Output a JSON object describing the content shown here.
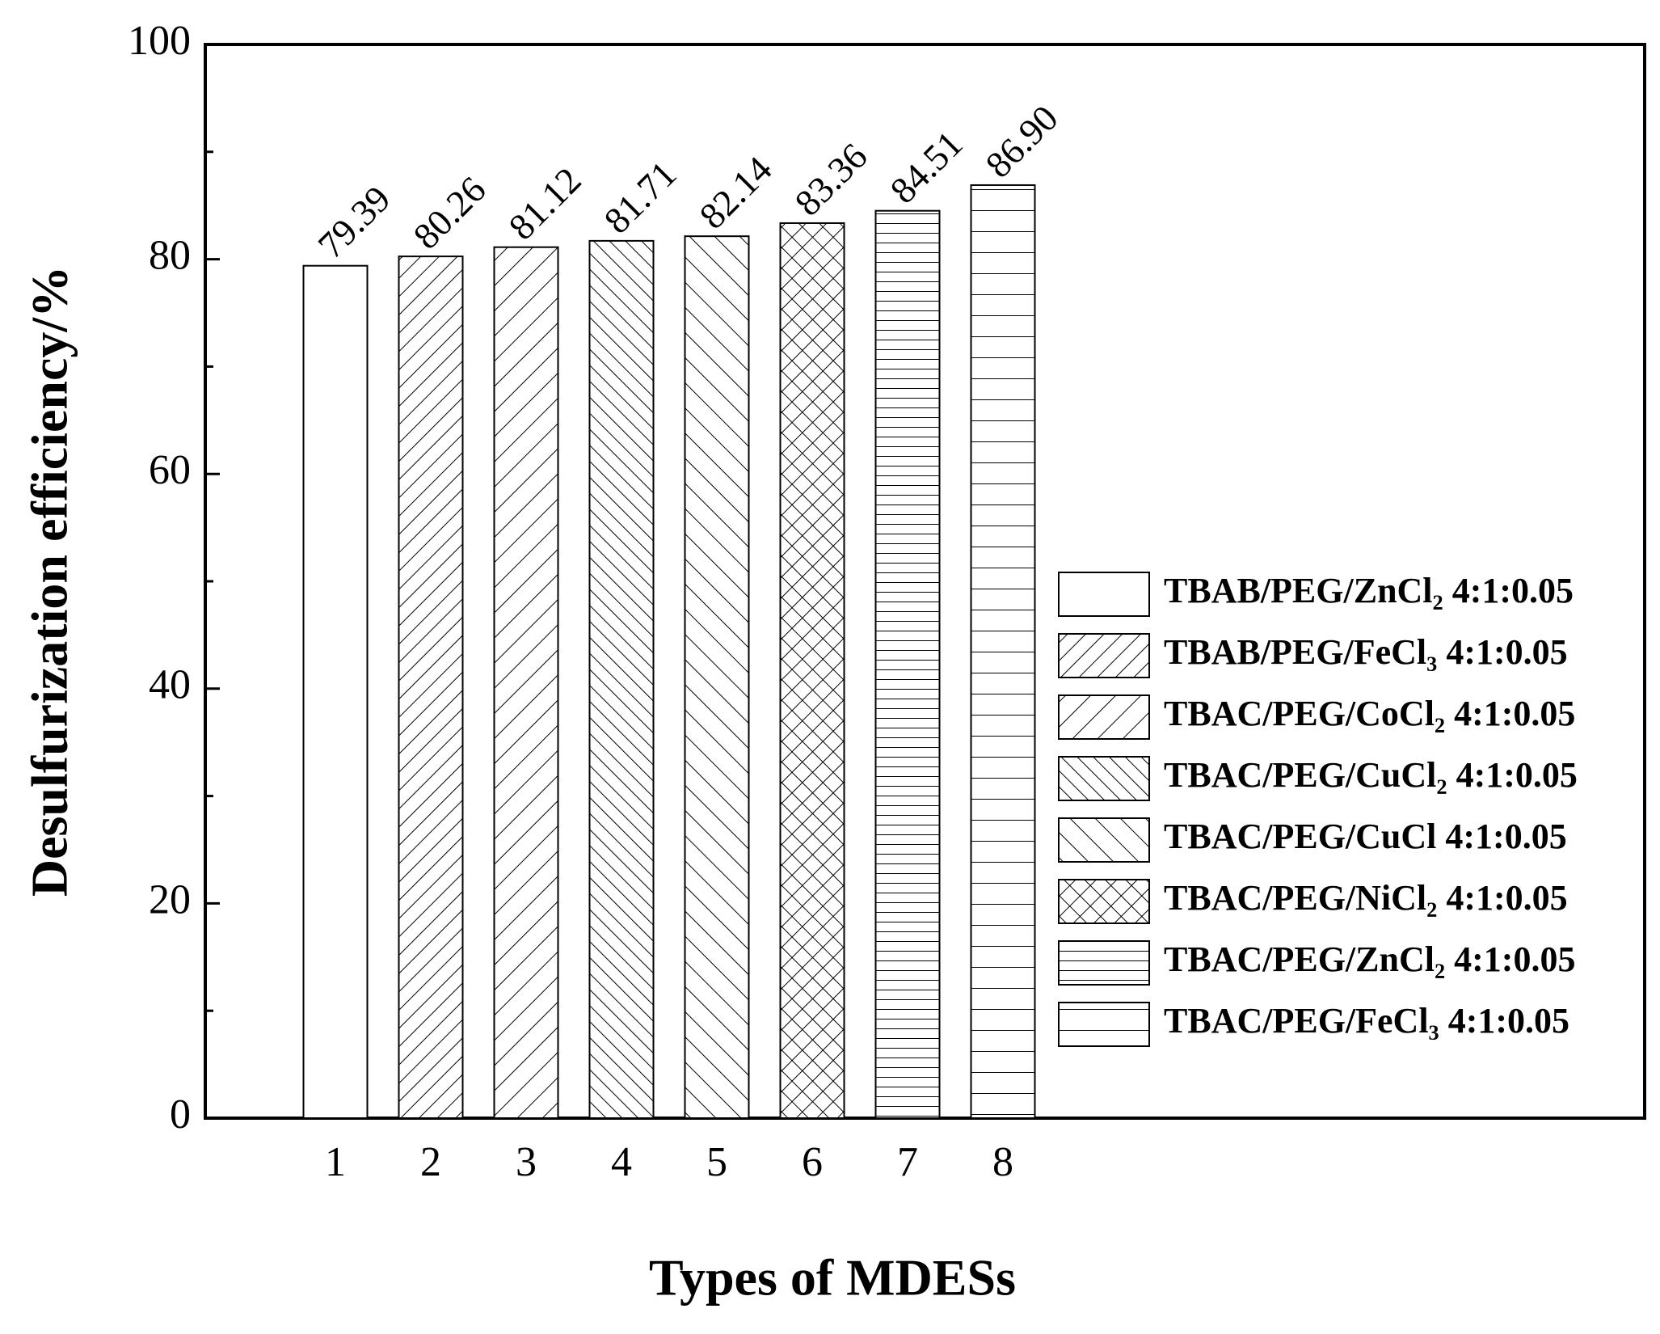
{
  "chart_data": {
    "type": "bar",
    "x_label": "Types of MDESs",
    "y_label": "Desulfurization efficiency/%",
    "categories": [
      "1",
      "2",
      "3",
      "4",
      "5",
      "6",
      "7",
      "8"
    ],
    "values": [
      79.39,
      80.26,
      81.12,
      81.71,
      82.14,
      83.36,
      84.51,
      86.9
    ],
    "value_labels": [
      "79.39",
      "80.26",
      "81.12",
      "81.71",
      "82.14",
      "83.36",
      "84.51",
      "86.90"
    ],
    "legend_labels": [
      "TBAB/PEG/ZnCl₂ 4:1:0.05",
      "TBAB/PEG/FeCl₃ 4:1:0.05",
      "TBAC/PEG/CoCl₂ 4:1:0.05",
      "TBAC/PEG/CuCl₂ 4:1:0.05",
      "TBAC/PEG/CuCl  4:1:0.05",
      "TBAC/PEG/NiCl₂ 4:1:0.05",
      "TBAC/PEG/ZnCl₂ 4:1:0.05",
      "TBAC/PEG/FeCl₃ 4:1:0.05"
    ],
    "patterns": [
      "none",
      "diag-up-dense",
      "diag-up",
      "diag-down-dense",
      "diag-down",
      "cross",
      "horiz-dense",
      "horiz"
    ],
    "color": "#000000",
    "ylim": [
      0,
      100
    ],
    "yticks": [
      0,
      20,
      40,
      60,
      80,
      100
    ],
    "yminorticks": [
      10,
      30,
      50,
      70,
      90
    ],
    "legend_position": "right"
  }
}
